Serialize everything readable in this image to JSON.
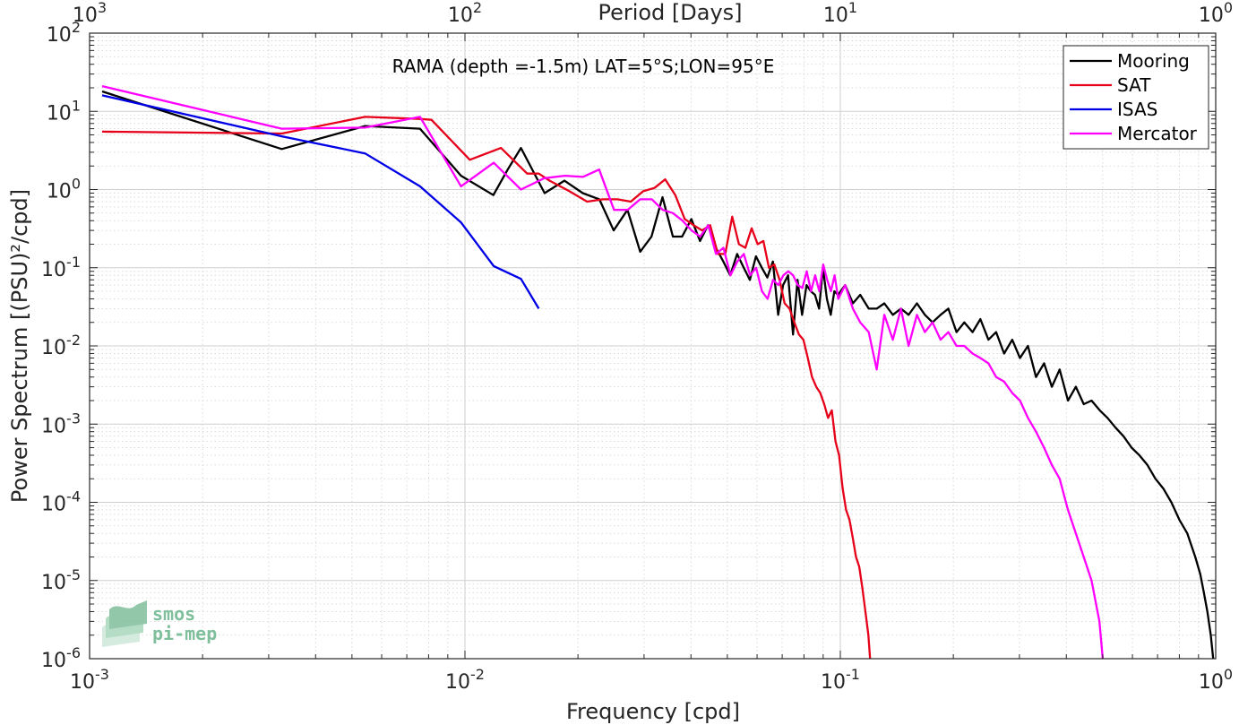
{
  "chart_data": {
    "type": "line",
    "xscale": "log",
    "yscale": "log",
    "xlim": [
      0.001,
      1
    ],
    "ylim": [
      1e-06,
      100
    ],
    "xlabel": "Frequency [cpd]",
    "ylabel": "Power Spectrum [(PSU)²/cpd]",
    "top_axis_label": "Period [Days]",
    "annotation": "RAMA (depth =-1.5m) LAT=5°S;LON=95°E",
    "grid": true,
    "legend_position": "top-right",
    "x_ticks": [
      {
        "base": "10",
        "exp": "-3",
        "value": 0.001
      },
      {
        "base": "10",
        "exp": "-2",
        "value": 0.01
      },
      {
        "base": "10",
        "exp": "-1",
        "value": 0.1
      },
      {
        "base": "10",
        "exp": "0",
        "value": 1
      }
    ],
    "top_ticks": [
      {
        "base": "10",
        "exp": "3",
        "value": 0.001
      },
      {
        "base": "10",
        "exp": "2",
        "value": 0.01
      },
      {
        "base": "10",
        "exp": "1",
        "value": 0.1
      },
      {
        "base": "10",
        "exp": "0",
        "value": 1
      }
    ],
    "y_ticks": [
      {
        "base": "10",
        "exp": "2",
        "value": 100
      },
      {
        "base": "10",
        "exp": "1",
        "value": 10
      },
      {
        "base": "10",
        "exp": "0",
        "value": 1
      },
      {
        "base": "10",
        "exp": "-1",
        "value": 0.1
      },
      {
        "base": "10",
        "exp": "-2",
        "value": 0.01
      },
      {
        "base": "10",
        "exp": "-3",
        "value": 0.001
      },
      {
        "base": "10",
        "exp": "-4",
        "value": 0.0001
      },
      {
        "base": "10",
        "exp": "-5",
        "value": 1e-05
      },
      {
        "base": "10",
        "exp": "-6",
        "value": 1e-06
      }
    ],
    "series": [
      {
        "name": "Mooring",
        "color": "#000000",
        "x": [
          0.00108,
          0.00325,
          0.00542,
          0.00759,
          0.00976,
          0.0119,
          0.013,
          0.0141,
          0.0163,
          0.0184,
          0.0206,
          0.0228,
          0.0249,
          0.0271,
          0.0293,
          0.0314,
          0.0336,
          0.0358,
          0.0379,
          0.0401,
          0.0423,
          0.0444,
          0.0466,
          0.0488,
          0.0509,
          0.0531,
          0.0553,
          0.0574,
          0.0596,
          0.0618,
          0.0639,
          0.0661,
          0.0683,
          0.0704,
          0.0726,
          0.0748,
          0.0769,
          0.0791,
          0.0813,
          0.0834,
          0.0856,
          0.0878,
          0.0899,
          0.0921,
          0.0943,
          0.0964,
          0.0986,
          0.103,
          0.108,
          0.113,
          0.119,
          0.125,
          0.131,
          0.138,
          0.145,
          0.152,
          0.16,
          0.168,
          0.176,
          0.185,
          0.194,
          0.204,
          0.214,
          0.225,
          0.236,
          0.248,
          0.26,
          0.273,
          0.287,
          0.301,
          0.316,
          0.332,
          0.349,
          0.366,
          0.384,
          0.404,
          0.424,
          0.445,
          0.467,
          0.491,
          0.515,
          0.541,
          0.568,
          0.597,
          0.626,
          0.658,
          0.691,
          0.725,
          0.762,
          0.8,
          0.84,
          0.882,
          0.91,
          0.93,
          0.95,
          0.97,
          0.985
        ],
        "y": [
          18,
          3.3,
          6.5,
          6.0,
          1.5,
          0.85,
          1.8,
          3.4,
          0.9,
          1.3,
          0.9,
          0.75,
          0.3,
          0.55,
          0.16,
          0.25,
          0.8,
          0.25,
          0.25,
          0.42,
          0.22,
          0.35,
          0.18,
          0.12,
          0.08,
          0.15,
          0.1,
          0.07,
          0.14,
          0.1,
          0.075,
          0.12,
          0.025,
          0.06,
          0.08,
          0.014,
          0.07,
          0.025,
          0.06,
          0.05,
          0.045,
          0.03,
          0.1,
          0.04,
          0.025,
          0.05,
          0.045,
          0.06,
          0.035,
          0.045,
          0.03,
          0.03,
          0.035,
          0.025,
          0.03,
          0.025,
          0.035,
          0.025,
          0.02,
          0.025,
          0.03,
          0.015,
          0.02,
          0.015,
          0.022,
          0.012,
          0.015,
          0.008,
          0.012,
          0.007,
          0.01,
          0.004,
          0.006,
          0.003,
          0.005,
          0.002,
          0.003,
          0.0018,
          0.002,
          0.0015,
          0.0012,
          0.0009,
          0.0007,
          0.0005,
          0.0004,
          0.0003,
          0.0002,
          0.00015,
          0.0001,
          6e-05,
          4e-05,
          2e-05,
          1.2e-05,
          7e-06,
          4e-06,
          2e-06,
          1e-06
        ]
      },
      {
        "name": "SAT",
        "color": "#e6001a",
        "x": [
          0.00108,
          0.00325,
          0.00542,
          0.00759,
          0.00814,
          0.0103,
          0.01247,
          0.01464,
          0.01573,
          0.01681,
          0.01898,
          0.02115,
          0.02332,
          0.02549,
          0.02766,
          0.02983,
          0.03199,
          0.03416,
          0.03633,
          0.0385,
          0.04067,
          0.04284,
          0.04501,
          0.04718,
          0.04935,
          0.05152,
          0.05369,
          0.05586,
          0.05803,
          0.0602,
          0.06237,
          0.06454,
          0.06671,
          0.06888,
          0.07105,
          0.07322,
          0.07539,
          0.07756,
          0.07973,
          0.0819,
          0.08407,
          0.08624,
          0.08841,
          0.09058,
          0.09275,
          0.09492,
          0.09709,
          0.09926,
          0.10143,
          0.1036,
          0.10577,
          0.10794,
          0.11011,
          0.11228,
          0.11445,
          0.11662,
          0.11879,
          0.12
        ],
        "y": [
          5.5,
          5.2,
          8.5,
          8.0,
          7.8,
          2.4,
          3.4,
          1.6,
          1.6,
          1.3,
          0.95,
          0.7,
          0.75,
          0.75,
          0.7,
          0.95,
          1.05,
          1.35,
          0.85,
          0.42,
          0.35,
          0.3,
          0.35,
          0.15,
          0.15,
          0.45,
          0.2,
          0.18,
          0.32,
          0.2,
          0.22,
          0.1,
          0.11,
          0.07,
          0.035,
          0.03,
          0.02,
          0.014,
          0.012,
          0.007,
          0.004,
          0.003,
          0.0025,
          0.0018,
          0.0012,
          0.0015,
          0.0006,
          0.0004,
          0.00015,
          8e-05,
          6e-05,
          3.5e-05,
          2e-05,
          1.5e-05,
          8e-06,
          4e-06,
          2e-06,
          1e-06
        ]
      },
      {
        "name": "ISAS",
        "color": "#0000e6",
        "x": [
          0.00108,
          0.00325,
          0.00542,
          0.00759,
          0.00976,
          0.01193,
          0.0141,
          0.01573
        ],
        "y": [
          16,
          4.8,
          2.9,
          1.1,
          0.38,
          0.105,
          0.072,
          0.03
        ]
      },
      {
        "name": "Mercator",
        "color": "#ff00ff",
        "x": [
          0.00108,
          0.00325,
          0.00542,
          0.00759,
          0.00976,
          0.01193,
          0.0141,
          0.01627,
          0.01844,
          0.02061,
          0.02278,
          0.02495,
          0.02712,
          0.02929,
          0.03146,
          0.03363,
          0.0358,
          0.03797,
          0.04014,
          0.04231,
          0.04448,
          0.04665,
          0.04882,
          0.05099,
          0.05316,
          0.05533,
          0.0575,
          0.05967,
          0.06184,
          0.06401,
          0.06618,
          0.06835,
          0.07052,
          0.07269,
          0.07486,
          0.07703,
          0.0792,
          0.08137,
          0.08354,
          0.08571,
          0.08788,
          0.09005,
          0.09222,
          0.09439,
          0.09656,
          0.09873,
          0.103,
          0.108,
          0.113,
          0.119,
          0.125,
          0.131,
          0.138,
          0.145,
          0.152,
          0.16,
          0.168,
          0.176,
          0.185,
          0.194,
          0.204,
          0.214,
          0.225,
          0.236,
          0.248,
          0.26,
          0.273,
          0.287,
          0.301,
          0.316,
          0.332,
          0.349,
          0.366,
          0.384,
          0.404,
          0.424,
          0.445,
          0.467,
          0.49,
          0.5
        ],
        "y": [
          21,
          6.0,
          6.2,
          8.5,
          1.1,
          2.2,
          1.0,
          1.4,
          1.5,
          1.45,
          1.8,
          0.55,
          0.55,
          0.75,
          0.75,
          0.55,
          0.5,
          0.4,
          0.3,
          0.25,
          0.35,
          0.15,
          0.18,
          0.08,
          0.12,
          0.15,
          0.08,
          0.1,
          0.05,
          0.04,
          0.07,
          0.06,
          0.08,
          0.09,
          0.08,
          0.06,
          0.055,
          0.09,
          0.05,
          0.08,
          0.05,
          0.11,
          0.07,
          0.05,
          0.08,
          0.04,
          0.06,
          0.03,
          0.02,
          0.015,
          0.005,
          0.025,
          0.012,
          0.03,
          0.01,
          0.025,
          0.015,
          0.02,
          0.012,
          0.015,
          0.01,
          0.01,
          0.008,
          0.007,
          0.006,
          0.004,
          0.0035,
          0.0025,
          0.002,
          0.0012,
          0.0008,
          0.0005,
          0.0003,
          0.0002,
          8e-05,
          4e-05,
          2e-05,
          1e-05,
          3e-06,
          1e-06
        ]
      }
    ]
  },
  "logo": {
    "line1": "smos",
    "line2": "pi-mep",
    "color": "#7fbf9b"
  }
}
